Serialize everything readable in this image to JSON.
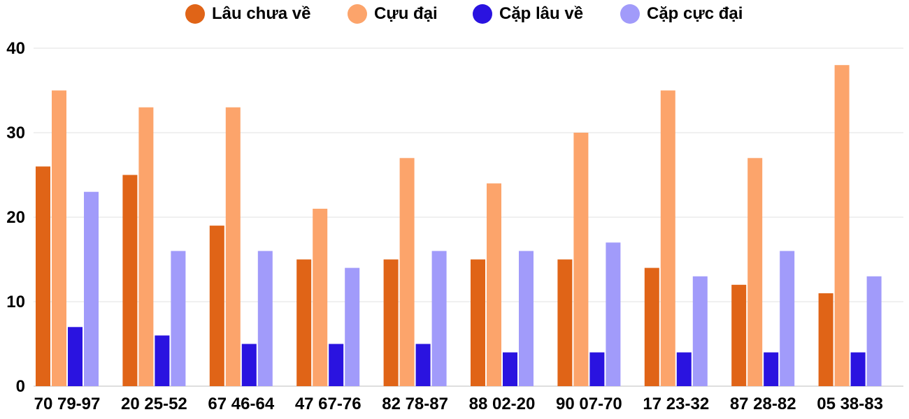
{
  "chart_data": {
    "type": "bar",
    "title": "",
    "xlabel": "",
    "ylabel": "",
    "ylim": [
      0,
      40
    ],
    "yticks": [
      0,
      10,
      20,
      30,
      40
    ],
    "grid": true,
    "legend_position": "top-center",
    "categories": [
      "70 79-97",
      "20 25-52",
      "67 46-64",
      "47 67-76",
      "82 78-87",
      "88 02-20",
      "90 07-70",
      "17 23-32",
      "87 28-82",
      "05 38-83"
    ],
    "series": [
      {
        "name": "Lâu chưa về",
        "color": "#e06417",
        "values": [
          26,
          25,
          19,
          15,
          15,
          15,
          15,
          14,
          12,
          11
        ]
      },
      {
        "name": "Cựu đại",
        "color": "#fca46b",
        "values": [
          35,
          33,
          33,
          21,
          27,
          24,
          30,
          35,
          27,
          38
        ]
      },
      {
        "name": "Cặp lâu về",
        "color": "#2a13e0",
        "values": [
          7,
          6,
          5,
          5,
          5,
          4,
          4,
          4,
          4,
          4
        ]
      },
      {
        "name": "Cặp cực đại",
        "color": "#a19bfa",
        "values": [
          23,
          16,
          16,
          14,
          16,
          16,
          17,
          13,
          16,
          13
        ]
      }
    ]
  }
}
